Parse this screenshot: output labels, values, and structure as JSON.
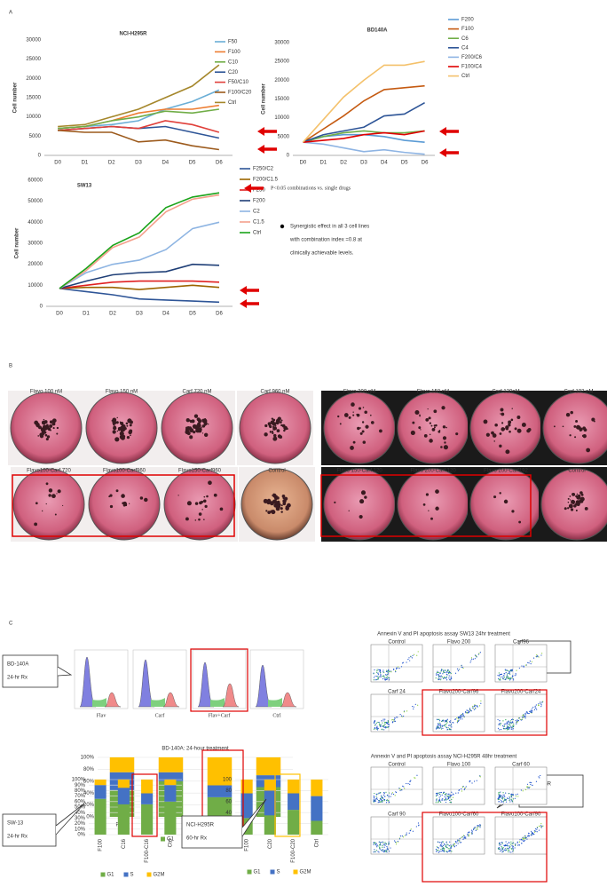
{
  "chart_data": [
    {
      "type": "line",
      "title": "NCI-H295R",
      "ylabel": "Cell number",
      "categories": [
        "D0",
        "D1",
        "D2",
        "D3",
        "D4",
        "D5",
        "D6"
      ],
      "ylim": [
        0,
        30000
      ],
      "yticks": [
        0,
        5000,
        10000,
        15000,
        20000,
        25000,
        30000
      ],
      "grid": false,
      "series": [
        {
          "name": "F50",
          "color": "#6aaed6",
          "values": [
            7000,
            7500,
            8000,
            9000,
            12000,
            14000,
            17000
          ]
        },
        {
          "name": "F100",
          "color": "#ed7d31",
          "values": [
            7000,
            7500,
            9000,
            11000,
            12000,
            12000,
            13000
          ]
        },
        {
          "name": "C10",
          "color": "#70ad47",
          "values": [
            7000,
            7500,
            9000,
            10000,
            11500,
            11000,
            12000
          ]
        },
        {
          "name": "C20",
          "color": "#2e5597",
          "values": [
            6500,
            7000,
            7500,
            7000,
            7500,
            6000,
            4500
          ]
        },
        {
          "name": "F50/C10",
          "color": "#e0403a",
          "values": [
            6500,
            7000,
            7500,
            7000,
            9000,
            8000,
            6000
          ]
        },
        {
          "name": "F100/C20",
          "color": "#9c5a1c",
          "values": [
            6500,
            6000,
            6000,
            3500,
            4000,
            2500,
            1500
          ]
        },
        {
          "name": "Ctrl",
          "color": "#a5872b",
          "values": [
            7500,
            8000,
            10000,
            12000,
            15000,
            18000,
            23500
          ]
        }
      ]
    },
    {
      "type": "line",
      "title": "BD140A",
      "ylabel": "Cell number",
      "categories": [
        "D0",
        "D1",
        "D2",
        "D3",
        "D4",
        "D5",
        "D6"
      ],
      "ylim": [
        0,
        30000
      ],
      "yticks": [
        0,
        5000,
        10000,
        15000,
        20000,
        25000,
        30000
      ],
      "grid": false,
      "series": [
        {
          "name": "F200",
          "color": "#5b9bd5",
          "values": [
            3500,
            5000,
            5500,
            5500,
            5000,
            4000,
            3500
          ]
        },
        {
          "name": "F100",
          "color": "#c55a11",
          "values": [
            3500,
            7000,
            10500,
            14500,
            17500,
            18000,
            18500
          ]
        },
        {
          "name": "C6",
          "color": "#70ad47",
          "values": [
            3500,
            5000,
            6000,
            6500,
            6000,
            6000,
            6500
          ]
        },
        {
          "name": "C4",
          "color": "#2e5597",
          "values": [
            3500,
            5500,
            6500,
            7500,
            10500,
            11000,
            14000
          ]
        },
        {
          "name": "F200/C6",
          "color": "#8eb4e3",
          "values": [
            3500,
            3000,
            2000,
            1000,
            1500,
            800,
            300
          ]
        },
        {
          "name": "F100/C4",
          "color": "#e00000",
          "values": [
            3500,
            4000,
            4500,
            5500,
            6000,
            5500,
            6500
          ]
        },
        {
          "name": "Ctrl",
          "color": "#f4c16b",
          "values": [
            3500,
            9500,
            15500,
            20000,
            24000,
            24000,
            25000
          ]
        }
      ]
    },
    {
      "type": "line",
      "title": "SW13",
      "ylabel": "Cell number",
      "categories": [
        "D0",
        "D1",
        "D2",
        "D3",
        "D4",
        "D5",
        "D6"
      ],
      "ylim": [
        0,
        60000
      ],
      "yticks": [
        0,
        10000,
        20000,
        30000,
        40000,
        50000,
        60000
      ],
      "grid": false,
      "series": [
        {
          "name": "F250/C2",
          "color": "#2e5597",
          "values": [
            8500,
            7000,
            5500,
            3500,
            3000,
            2500,
            2000
          ]
        },
        {
          "name": "F200/C1.5",
          "color": "#9c6500",
          "values": [
            8500,
            9000,
            9000,
            8000,
            9000,
            10000,
            9000
          ]
        },
        {
          "name": "F250",
          "color": "#e02020",
          "values": [
            8500,
            10000,
            11500,
            12000,
            12000,
            12000,
            11500
          ]
        },
        {
          "name": "F200",
          "color": "#1f3f77",
          "values": [
            8500,
            12000,
            15000,
            16000,
            16500,
            20000,
            19500
          ]
        },
        {
          "name": "C2",
          "color": "#8db4e2",
          "values": [
            8500,
            16000,
            20000,
            22000,
            27000,
            37000,
            40000
          ]
        },
        {
          "name": "C1.5",
          "color": "#f4a08c",
          "values": [
            8500,
            17000,
            28000,
            33000,
            45000,
            51000,
            53000
          ]
        },
        {
          "name": "Ctrl",
          "color": "#1aa31a",
          "values": [
            8500,
            18000,
            29000,
            35000,
            47000,
            52000,
            54000
          ]
        }
      ]
    },
    {
      "type": "bar",
      "stacked": true,
      "title": "BD-140A: 24-hour treatment",
      "categories": [
        "F100",
        "C4",
        "F100-C4",
        "Ctrl"
      ],
      "ylim": [
        0,
        100
      ],
      "yticks": [
        {
          "value": 0,
          "label": "0%"
        },
        {
          "value": 20,
          "label": "20%"
        },
        {
          "value": 40,
          "label": "40%"
        },
        {
          "value": 60,
          "label": "60%"
        },
        {
          "value": 80,
          "label": "80%"
        },
        {
          "value": 100,
          "label": "100%"
        }
      ],
      "series": [
        {
          "name": "G1",
          "color": "#70ad47",
          "values": [
            45,
            60,
            33,
            50
          ]
        },
        {
          "name": "S",
          "color": "#4472c4",
          "values": [
            30,
            15,
            20,
            20
          ]
        },
        {
          "name": "G2M",
          "color": "#ffc000",
          "values": [
            25,
            25,
            47,
            30
          ]
        }
      ]
    },
    {
      "type": "bar",
      "stacked": true,
      "categories": [
        "F100",
        "C16",
        "F100-C16",
        "Ctrl"
      ],
      "ylim": [
        0,
        100
      ],
      "yticks": [
        {
          "value": 0,
          "label": "0%"
        },
        {
          "value": 10,
          "label": "10%"
        },
        {
          "value": 20,
          "label": "20%"
        },
        {
          "value": 30,
          "label": "30%"
        },
        {
          "value": 40,
          "label": "40%"
        },
        {
          "value": 50,
          "label": "50%"
        },
        {
          "value": 60,
          "label": "60%"
        },
        {
          "value": 70,
          "label": "70%"
        },
        {
          "value": 80,
          "label": "80%"
        },
        {
          "value": 90,
          "label": "90%"
        },
        {
          "value": 100,
          "label": "100%"
        }
      ],
      "series": [
        {
          "name": "G1",
          "color": "#70ad47",
          "values": [
            65,
            55,
            55,
            60
          ]
        },
        {
          "name": "S",
          "color": "#4472c4",
          "values": [
            25,
            30,
            20,
            30
          ]
        },
        {
          "name": "G2M",
          "color": "#ffc000",
          "values": [
            10,
            15,
            25,
            10
          ]
        }
      ]
    },
    {
      "type": "bar",
      "stacked": true,
      "categories": [
        "F100",
        "C20",
        "F100-C20",
        "Ctrl"
      ],
      "ylim": [
        0,
        100
      ],
      "yticks": [
        0,
        20,
        40,
        60,
        80,
        100
      ],
      "series": [
        {
          "name": "G1",
          "color": "#70ad47",
          "values": [
            30,
            35,
            45,
            25
          ]
        },
        {
          "name": "S",
          "color": "#4472c4",
          "values": [
            45,
            45,
            30,
            45
          ]
        },
        {
          "name": "G2M",
          "color": "#ffc000",
          "values": [
            25,
            20,
            25,
            30
          ]
        }
      ]
    }
  ],
  "panel_a": {
    "label": "A",
    "significance_note": "P<0.05 combinations vs. single drugs",
    "bullet_lines": [
      "Synergistic effect in all 3 cell lines",
      "with combination index =0.8 at",
      "clinically achievable levels."
    ]
  },
  "panel_b": {
    "label": "B",
    "top_row": [
      "Flavo 100 nM",
      "Flavo 150 nM",
      "Carf 720 nM",
      "Carf 960 nM",
      "Flavo 200 nM",
      "Flavo 150 nM",
      "Carf 120nM",
      "Carf 192 nM"
    ],
    "bottom_row": [
      "Flavo100-Carf 720",
      "Flavo100-Carf960",
      "Flavo150-Carf960",
      "Control",
      "Flavo 150-Carf 120",
      "Flavo 200-Carf 120",
      "Flavo 200-Carf192",
      "Control"
    ]
  },
  "panel_c": {
    "label": "C",
    "histogram_labels": [
      "Flav",
      "Carf",
      "Flav+Carf",
      "Ctrl"
    ],
    "callouts": [
      [
        "BD-140A",
        "24-hr Rx"
      ],
      [
        "SW-13",
        "24-hr Rx"
      ],
      [
        "NCI-H295R",
        "60-hr Rx"
      ],
      [
        "SW-13",
        "24-hr Rx"
      ],
      [
        "NCI-H295R",
        "48-hr Rx"
      ]
    ],
    "flow_titles": [
      "Annexin V and PI apoptosis assay SW13 24hr treatment",
      "Annexin V and PI apoptosis assay NCI-H295R 48hr treatment"
    ],
    "flow_labels": [
      [
        "Control",
        "Flavo 200",
        "Carf96",
        "Carf 24",
        "Flavo200-Carf96",
        "Flavo200-Carf24"
      ],
      [
        "Control",
        "Flavo 100",
        "Carf 60",
        "Carf 90",
        "Flavo100-Carf60",
        "Flavo100-Carf90"
      ]
    ]
  }
}
